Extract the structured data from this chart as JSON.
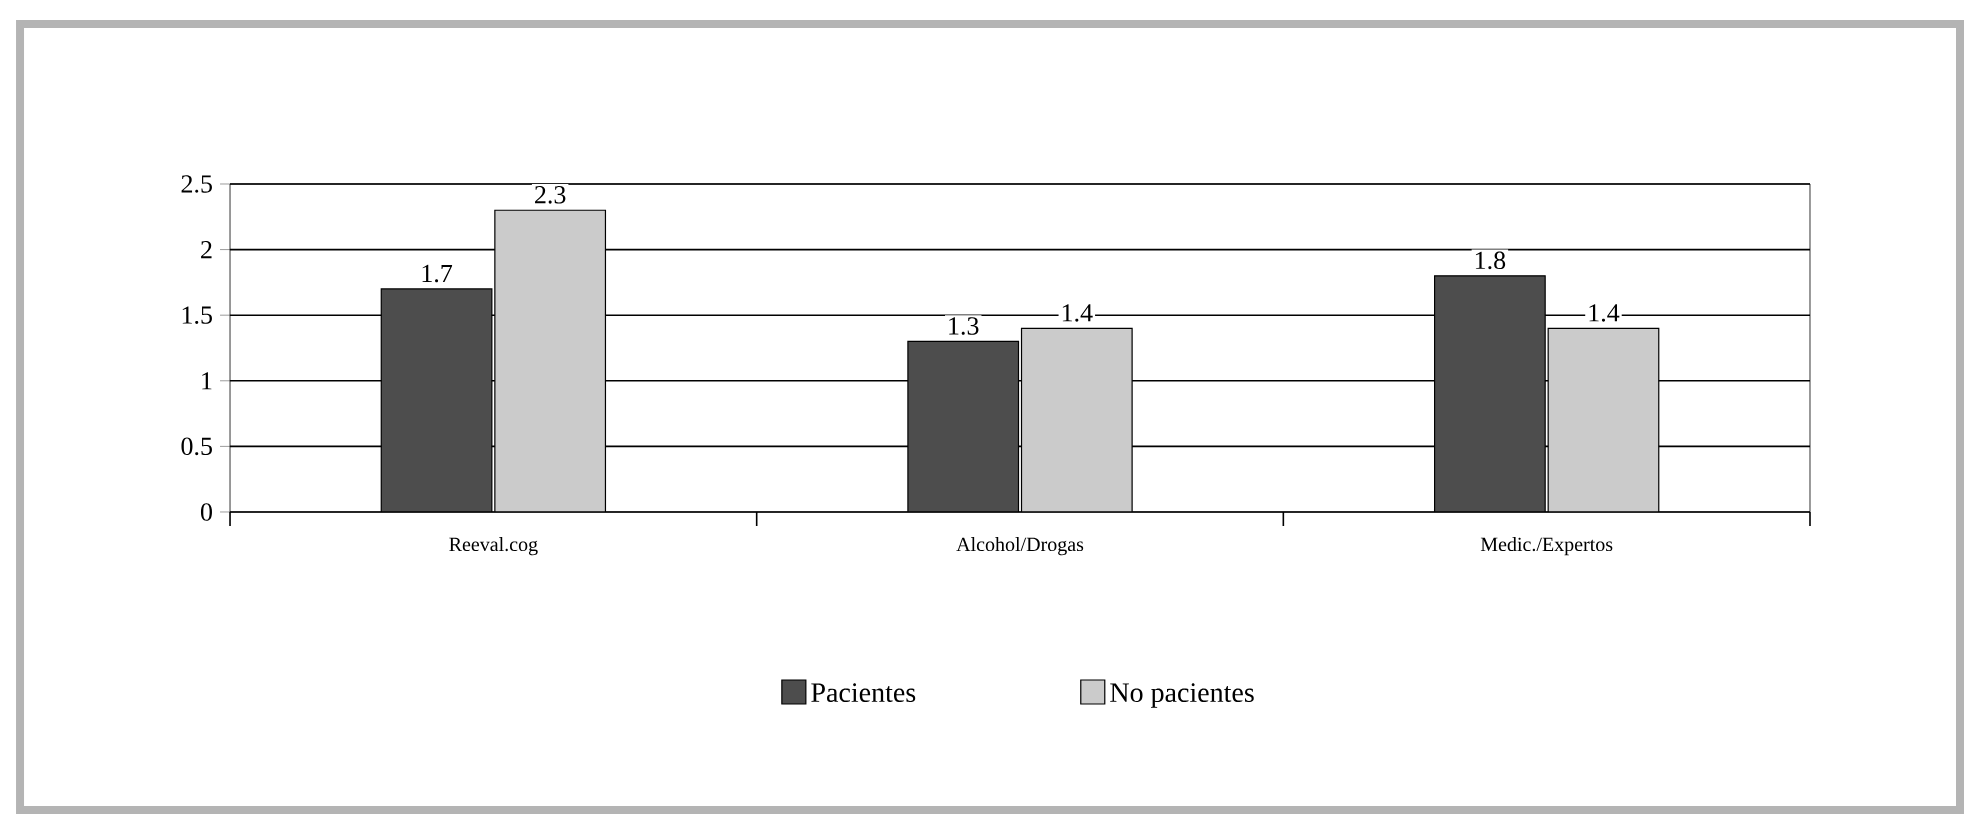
{
  "chart_data": {
    "type": "bar",
    "categories": [
      "Reeval.cog",
      "Alcohol/Drogas",
      "Medic./Expertos"
    ],
    "series": [
      {
        "name": "Pacientes",
        "color": "#4d4d4d",
        "values": [
          1.7,
          1.3,
          1.8
        ]
      },
      {
        "name": "No pacientes",
        "color": "#cbcbcb",
        "values": [
          2.3,
          1.4,
          1.4
        ]
      }
    ],
    "ylim": [
      0,
      2.5
    ],
    "yticks": [
      0,
      0.5,
      1,
      1.5,
      2,
      2.5
    ],
    "grid": "y",
    "legend": "bottom",
    "data_labels": true
  }
}
